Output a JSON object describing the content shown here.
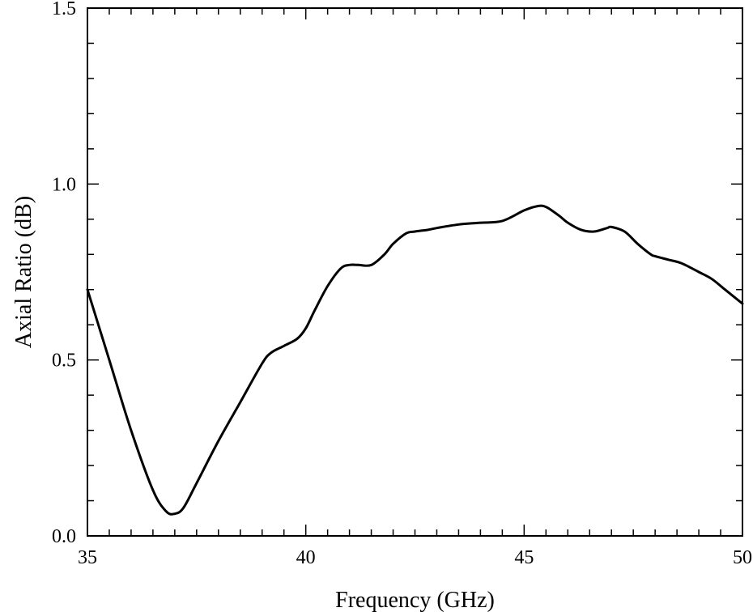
{
  "chart_data": {
    "type": "line",
    "title": "",
    "xlabel": "Frequency (GHz)",
    "ylabel": "Axial Ratio (dB)",
    "xlim": [
      35,
      50
    ],
    "ylim": [
      0.0,
      1.5
    ],
    "x_ticks": [
      35,
      40,
      45,
      50
    ],
    "x_tick_labels": [
      "35",
      "40",
      "45",
      "50"
    ],
    "x_minor_step": 0.5,
    "y_ticks": [
      0.0,
      0.5,
      1.0,
      1.5
    ],
    "y_tick_labels": [
      "0.0",
      "0.5",
      "1.0",
      "1.5"
    ],
    "y_minor_step": 0.1,
    "grid": false,
    "legend": "none",
    "series": [
      {
        "color": "#000000",
        "x": [
          35.0,
          35.5,
          36.0,
          36.5,
          36.8,
          37.0,
          37.2,
          37.5,
          38.0,
          38.5,
          39.0,
          39.2,
          39.5,
          39.8,
          40.0,
          40.2,
          40.5,
          40.8,
          41.0,
          41.2,
          41.5,
          41.8,
          42.0,
          42.3,
          42.5,
          42.8,
          43.0,
          43.5,
          44.0,
          44.5,
          45.0,
          45.3,
          45.5,
          45.8,
          46.0,
          46.3,
          46.6,
          46.9,
          47.0,
          47.3,
          47.6,
          47.9,
          48.0,
          48.3,
          48.6,
          49.0,
          49.3,
          49.6,
          50.0
        ],
        "y": [
          0.7,
          0.5,
          0.3,
          0.13,
          0.07,
          0.063,
          0.08,
          0.15,
          0.27,
          0.38,
          0.49,
          0.52,
          0.54,
          0.56,
          0.59,
          0.64,
          0.71,
          0.76,
          0.77,
          0.77,
          0.77,
          0.8,
          0.83,
          0.86,
          0.865,
          0.87,
          0.875,
          0.885,
          0.89,
          0.895,
          0.925,
          0.937,
          0.935,
          0.91,
          0.89,
          0.87,
          0.865,
          0.875,
          0.878,
          0.865,
          0.83,
          0.8,
          0.795,
          0.785,
          0.775,
          0.75,
          0.73,
          0.7,
          0.66
        ]
      }
    ]
  }
}
